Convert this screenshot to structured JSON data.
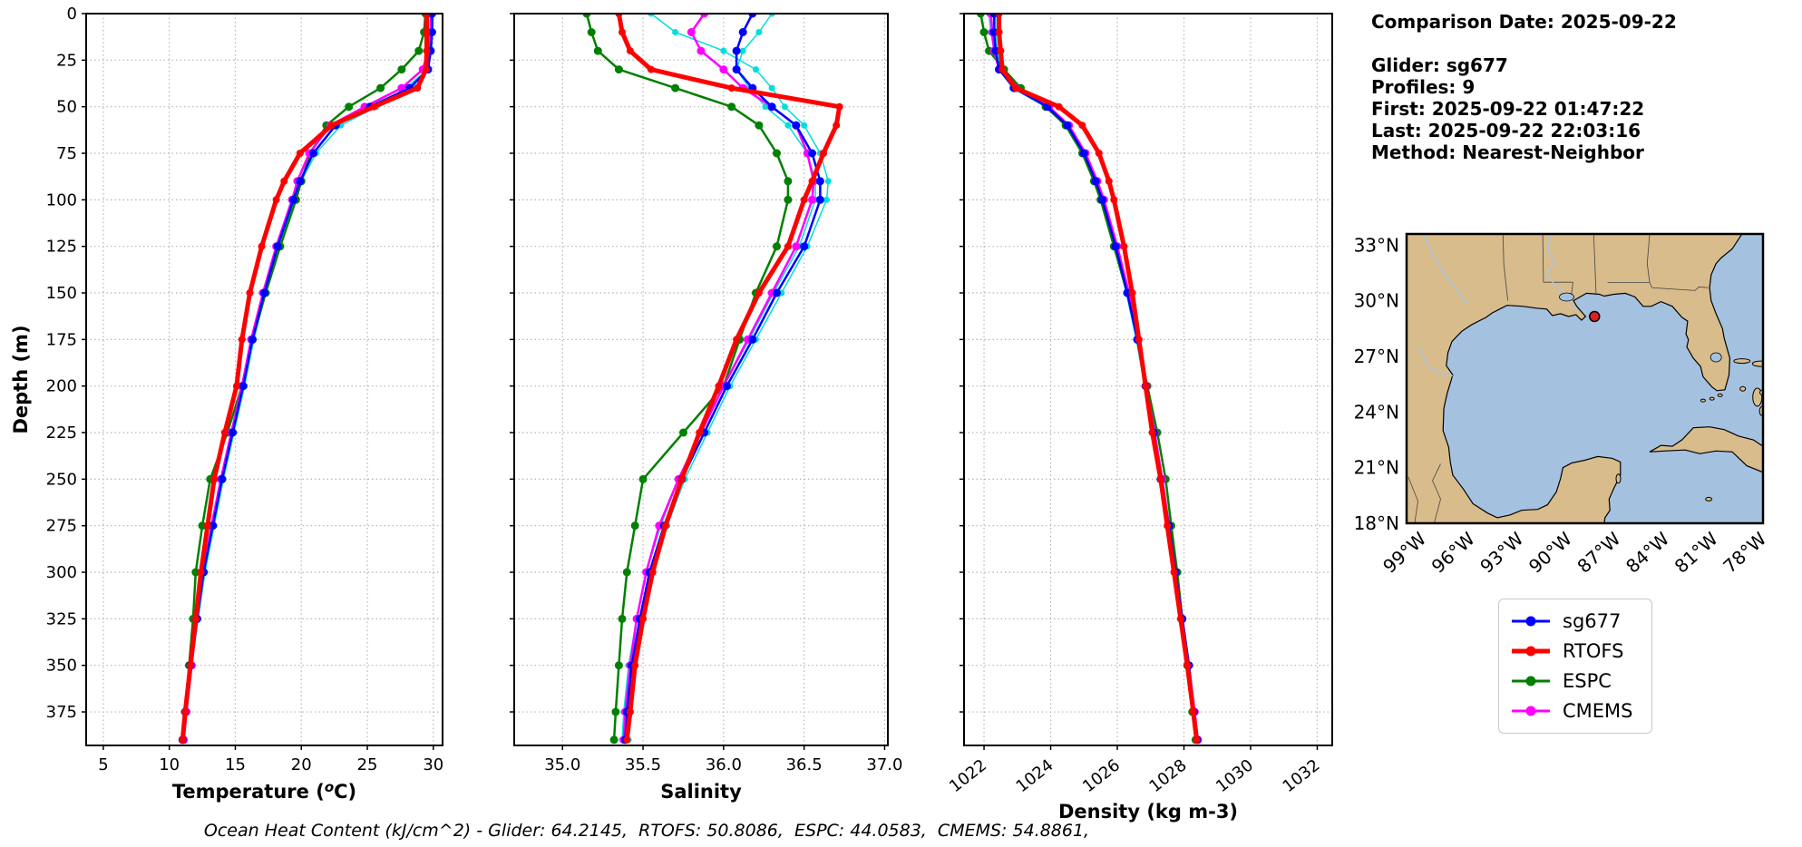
{
  "info_panel": {
    "comparison_date": "Comparison Date: 2025-09-22",
    "glider": "Glider: sg677",
    "profiles": "Profiles: 9",
    "first": "First: 2025-09-22 01:47:22",
    "last": "Last: 2025-09-22 22:03:16",
    "method": "Method: Nearest-Neighbor"
  },
  "caption": "Ocean Heat Content (kJ/cm^2) - Glider: 64.2145,  RTOFS: 50.8086,  ESPC: 44.0583,  CMEMS: 54.8861,",
  "legend": [
    {
      "label": "sg677",
      "color": "#0000ff",
      "width": 3
    },
    {
      "label": "RTOFS",
      "color": "#ff0000",
      "width": 5
    },
    {
      "label": "ESPC",
      "color": "#008000",
      "width": 3
    },
    {
      "label": "CMEMS",
      "color": "#ff00ff",
      "width": 3
    }
  ],
  "chart_data": [
    {
      "type": "line",
      "xlabel_parts": [
        "Temperature (",
        "o",
        "C)"
      ],
      "xlabel": "Temperature (oC)",
      "ylabel": "Depth (m)",
      "xlim": [
        3.7,
        30.7
      ],
      "ylim": [
        0,
        393
      ],
      "xticks": [
        5,
        10,
        15,
        20,
        25,
        30
      ],
      "xtick_labels": [
        "5",
        "10",
        "15",
        "20",
        "25",
        "30"
      ],
      "yticks": [
        0,
        25,
        50,
        75,
        100,
        125,
        150,
        175,
        200,
        225,
        250,
        275,
        300,
        325,
        350,
        375
      ],
      "show_ytick_labels": true,
      "rotate_xticks": false,
      "grid": true,
      "depths": [
        0,
        10,
        20,
        30,
        40,
        50,
        60,
        75,
        90,
        100,
        125,
        150,
        175,
        200,
        225,
        250,
        275,
        300,
        325,
        350,
        375,
        390
      ],
      "series": [
        {
          "name": "sg677-raw-profile-1",
          "color": "#00dede",
          "width": 1.5,
          "marker_r": 3.5,
          "x": [
            30.0,
            29.95,
            29.85,
            29.6,
            27.9,
            25.7,
            23.0,
            21.1,
            20.0,
            19.5,
            18.35,
            17.3,
            16.4,
            15.7,
            14.9,
            14.1,
            13.4,
            12.7,
            12.2,
            11.7,
            11.3,
            11.1
          ]
        },
        {
          "name": "sg677-raw-profile-2",
          "color": "#00dede",
          "width": 1.5,
          "marker_r": 3.5,
          "x": [
            29.85,
            29.85,
            29.75,
            29.5,
            28.4,
            24.9,
            22.2,
            20.7,
            19.7,
            19.25,
            18.1,
            17.1,
            16.2,
            15.5,
            14.7,
            13.95,
            13.25,
            12.55,
            12.05,
            11.55,
            11.15,
            10.95
          ]
        },
        {
          "name": "ESPC",
          "color": "#008000",
          "width": 2.5,
          "marker_r": 4.5,
          "x": [
            29.4,
            29.3,
            28.9,
            27.6,
            26.0,
            23.6,
            21.9,
            20.7,
            20.0,
            19.6,
            18.4,
            17.3,
            16.3,
            15.5,
            14.4,
            13.1,
            12.5,
            12.0,
            11.8,
            11.5,
            11.2,
            11.0
          ]
        },
        {
          "name": "CMEMS",
          "color": "#ff00ff",
          "width": 2.5,
          "marker_r": 4.5,
          "x": [
            29.8,
            29.8,
            29.6,
            29.2,
            27.6,
            24.8,
            22.2,
            20.6,
            19.7,
            19.3,
            18.1,
            17.1,
            16.2,
            15.5,
            14.7,
            13.9,
            13.2,
            12.6,
            12.1,
            11.7,
            11.3,
            11.1
          ]
        },
        {
          "name": "sg677",
          "color": "#0000ff",
          "width": 2.5,
          "marker_r": 4.5,
          "x": [
            29.9,
            29.9,
            29.8,
            29.6,
            28.2,
            25.2,
            22.6,
            20.9,
            19.9,
            19.4,
            18.2,
            17.2,
            16.3,
            15.6,
            14.8,
            14.0,
            13.3,
            12.6,
            12.1,
            11.6,
            11.2,
            11.0
          ]
        },
        {
          "name": "RTOFS",
          "color": "#ff0000",
          "width": 5,
          "marker_r": 4,
          "x": [
            29.5,
            29.5,
            29.5,
            29.45,
            28.8,
            25.5,
            22.3,
            19.9,
            18.7,
            18.1,
            17.0,
            16.1,
            15.5,
            15.1,
            14.2,
            13.4,
            12.9,
            12.4,
            12.0,
            11.6,
            11.2,
            11.0
          ]
        }
      ]
    },
    {
      "type": "line",
      "xlabel": "Salinity",
      "xlim": [
        34.7,
        37.02
      ],
      "ylim": [
        0,
        393
      ],
      "xticks": [
        35.0,
        35.5,
        36.0,
        36.5,
        37.0
      ],
      "xtick_labels": [
        "35.0",
        "35.5",
        "36.0",
        "36.5",
        "37.0"
      ],
      "yticks": [
        0,
        25,
        50,
        75,
        100,
        125,
        150,
        175,
        200,
        225,
        250,
        275,
        300,
        325,
        350,
        375
      ],
      "show_ytick_labels": false,
      "rotate_xticks": false,
      "grid": true,
      "depths": [
        0,
        10,
        20,
        30,
        40,
        50,
        60,
        75,
        90,
        100,
        125,
        150,
        175,
        200,
        225,
        250,
        275,
        300,
        325,
        350,
        375,
        390
      ],
      "series": [
        {
          "name": "sg677-raw-profile-1",
          "color": "#00dede",
          "width": 1.5,
          "marker_r": 3.5,
          "x": [
            35.55,
            35.7,
            36.0,
            36.2,
            36.3,
            36.38,
            36.5,
            36.6,
            36.65,
            36.64,
            36.52,
            36.36,
            36.2,
            36.04,
            35.9,
            35.76,
            35.65,
            35.56,
            35.5,
            35.45,
            35.42,
            35.41
          ]
        },
        {
          "name": "sg677-raw-profile-2",
          "color": "#00dede",
          "width": 1.5,
          "marker_r": 3.5,
          "x": [
            36.3,
            36.22,
            36.12,
            36.08,
            36.16,
            36.26,
            36.4,
            36.52,
            36.57,
            36.57,
            36.47,
            36.31,
            36.16,
            36.0,
            35.86,
            35.72,
            35.61,
            35.52,
            35.46,
            35.41,
            35.38,
            35.37
          ]
        },
        {
          "name": "ESPC",
          "color": "#008000",
          "width": 2.5,
          "marker_r": 4.5,
          "x": [
            35.15,
            35.18,
            35.22,
            35.35,
            35.7,
            36.05,
            36.22,
            36.33,
            36.4,
            36.4,
            36.33,
            36.2,
            36.1,
            36.0,
            35.75,
            35.5,
            35.45,
            35.4,
            35.37,
            35.35,
            35.33,
            35.32
          ]
        },
        {
          "name": "CMEMS",
          "color": "#ff00ff",
          "width": 2.5,
          "marker_r": 4.5,
          "x": [
            35.88,
            35.8,
            35.86,
            36.0,
            36.12,
            36.3,
            36.45,
            36.52,
            36.56,
            36.55,
            36.45,
            36.3,
            36.15,
            36.0,
            35.86,
            35.72,
            35.6,
            35.52,
            35.46,
            35.42,
            35.39,
            35.38
          ]
        },
        {
          "name": "sg677",
          "color": "#0000ff",
          "width": 2.5,
          "marker_r": 4.5,
          "x": [
            36.18,
            36.12,
            36.08,
            36.08,
            36.18,
            36.3,
            36.45,
            36.55,
            36.6,
            36.6,
            36.5,
            36.33,
            36.18,
            36.02,
            35.88,
            35.74,
            35.63,
            35.54,
            35.48,
            35.43,
            35.4,
            35.39
          ]
        },
        {
          "name": "RTOFS",
          "color": "#ff0000",
          "width": 5,
          "marker_r": 4,
          "x": [
            35.35,
            35.37,
            35.42,
            35.55,
            36.05,
            36.72,
            36.7,
            36.62,
            36.55,
            36.5,
            36.4,
            36.22,
            36.08,
            35.97,
            35.85,
            35.74,
            35.64,
            35.56,
            35.5,
            35.45,
            35.42,
            35.4
          ]
        }
      ]
    },
    {
      "type": "line",
      "xlabel": "Density (kg m-3)",
      "xlim": [
        1021.4,
        1032.45
      ],
      "ylim": [
        0,
        393
      ],
      "xticks": [
        1022,
        1024,
        1026,
        1028,
        1030,
        1032
      ],
      "xtick_labels": [
        "1022",
        "1024",
        "1026",
        "1028",
        "1030",
        "1032"
      ],
      "yticks": [
        0,
        25,
        50,
        75,
        100,
        125,
        150,
        175,
        200,
        225,
        250,
        275,
        300,
        325,
        350,
        375
      ],
      "show_ytick_labels": false,
      "rotate_xticks": true,
      "grid": true,
      "depths": [
        0,
        10,
        20,
        30,
        40,
        50,
        60,
        75,
        90,
        100,
        125,
        150,
        175,
        200,
        225,
        250,
        275,
        300,
        325,
        350,
        375,
        390
      ],
      "series": [
        {
          "name": "sg677-raw-profile-1",
          "color": "#00dede",
          "width": 1.5,
          "marker_r": 3.5,
          "x": [
            1022.15,
            1022.2,
            1022.3,
            1022.45,
            1022.95,
            1023.95,
            1024.55,
            1025.05,
            1025.4,
            1025.6,
            1026.0,
            1026.35,
            1026.63,
            1026.88,
            1027.12,
            1027.33,
            1027.56,
            1027.77,
            1027.97,
            1028.17,
            1028.32,
            1028.42
          ]
        },
        {
          "name": "sg677-raw-profile-2",
          "color": "#00dede",
          "width": 1.5,
          "marker_r": 3.5,
          "x": [
            1022.35,
            1022.35,
            1022.4,
            1022.5,
            1022.85,
            1023.85,
            1024.45,
            1024.95,
            1025.3,
            1025.5,
            1025.9,
            1026.27,
            1026.57,
            1026.82,
            1027.07,
            1027.28,
            1027.5,
            1027.72,
            1027.92,
            1028.12,
            1028.28,
            1028.38
          ]
        },
        {
          "name": "ESPC",
          "color": "#008000",
          "width": 2.5,
          "marker_r": 4.5,
          "x": [
            1021.9,
            1022.0,
            1022.15,
            1022.6,
            1023.1,
            1023.85,
            1024.45,
            1024.95,
            1025.3,
            1025.5,
            1025.9,
            1026.3,
            1026.6,
            1026.9,
            1027.2,
            1027.45,
            1027.62,
            1027.8,
            1027.95,
            1028.1,
            1028.25,
            1028.35
          ]
        },
        {
          "name": "CMEMS",
          "color": "#ff00ff",
          "width": 2.5,
          "marker_r": 4.5,
          "x": [
            1022.2,
            1022.25,
            1022.3,
            1022.45,
            1022.95,
            1023.95,
            1024.55,
            1025.05,
            1025.4,
            1025.6,
            1026.0,
            1026.35,
            1026.62,
            1026.87,
            1027.12,
            1027.35,
            1027.55,
            1027.75,
            1027.95,
            1028.15,
            1028.32,
            1028.42
          ]
        },
        {
          "name": "sg677",
          "color": "#0000ff",
          "width": 2.5,
          "marker_r": 4.5,
          "x": [
            1022.3,
            1022.3,
            1022.35,
            1022.45,
            1022.9,
            1023.9,
            1024.5,
            1025.0,
            1025.35,
            1025.55,
            1025.95,
            1026.3,
            1026.6,
            1026.85,
            1027.1,
            1027.3,
            1027.55,
            1027.75,
            1027.95,
            1028.15,
            1028.3,
            1028.4
          ]
        },
        {
          "name": "RTOFS",
          "color": "#ff0000",
          "width": 5,
          "marker_r": 4,
          "x": [
            1022.45,
            1022.45,
            1022.5,
            1022.55,
            1022.95,
            1024.25,
            1024.95,
            1025.45,
            1025.75,
            1025.9,
            1026.2,
            1026.45,
            1026.65,
            1026.85,
            1027.05,
            1027.3,
            1027.5,
            1027.7,
            1027.9,
            1028.1,
            1028.28,
            1028.38
          ]
        }
      ]
    }
  ],
  "map": {
    "extent": {
      "lon_min": -100,
      "lon_max": -78,
      "lat_min": 18,
      "lat_max": 33.6
    },
    "land_color": "#d9bc8b",
    "water_color": "#a4c2e0",
    "lat_ticks": [
      {
        "label": "33°N",
        "value": 33
      },
      {
        "label": "30°N",
        "value": 30
      },
      {
        "label": "27°N",
        "value": 27
      },
      {
        "label": "24°N",
        "value": 24
      },
      {
        "label": "21°N",
        "value": 21
      },
      {
        "label": "18°N",
        "value": 18
      }
    ],
    "lon_ticks": [
      {
        "label": "99°W",
        "value": -99
      },
      {
        "label": "96°W",
        "value": -96
      },
      {
        "label": "93°W",
        "value": -93
      },
      {
        "label": "90°W",
        "value": -90
      },
      {
        "label": "87°W",
        "value": -87
      },
      {
        "label": "84°W",
        "value": -84
      },
      {
        "label": "81°W",
        "value": -81
      },
      {
        "label": "78°W",
        "value": -78
      }
    ],
    "glider_location": {
      "lon": -88.4,
      "lat": 29.15,
      "color": "#e02020"
    }
  }
}
